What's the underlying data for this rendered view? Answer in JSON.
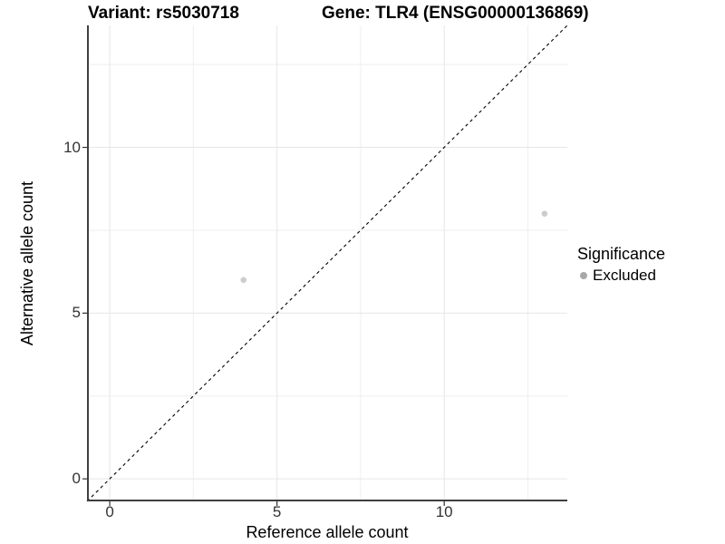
{
  "chart_data": {
    "type": "scatter",
    "title_left": "Variant: rs5030718",
    "title_right": "Gene: TLR4 (ENSG00000136869)",
    "xlabel": "Reference allele count",
    "ylabel": "Alternative allele count",
    "xlim": [
      -0.68,
      13.68
    ],
    "ylim": [
      -0.68,
      13.68
    ],
    "major_ticks": [
      0,
      5,
      10
    ],
    "major_tick_labels": [
      "0",
      "5",
      "10"
    ],
    "minor_ticks": [
      2.5,
      7.5,
      12.5
    ],
    "grid": true,
    "points": [
      {
        "x": 4,
        "y": 6,
        "group": "Excluded"
      },
      {
        "x": 13,
        "y": 8,
        "group": "Excluded"
      }
    ],
    "identity_line": {
      "type": "y=x",
      "style": "dashed",
      "color": "#000000"
    },
    "legend": {
      "title": "Significance",
      "position": "right",
      "items": [
        {
          "label": "Excluded",
          "color": "#a8a8a8"
        }
      ]
    },
    "colors": {
      "point_fill": "#cdcdcd",
      "grid_major": "#e6e6e6",
      "grid_minor": "#efefef",
      "axis_line": "#3f3f3f",
      "tick_mark": "#333333",
      "tick_text": "#333333",
      "background": "#ffffff"
    }
  }
}
